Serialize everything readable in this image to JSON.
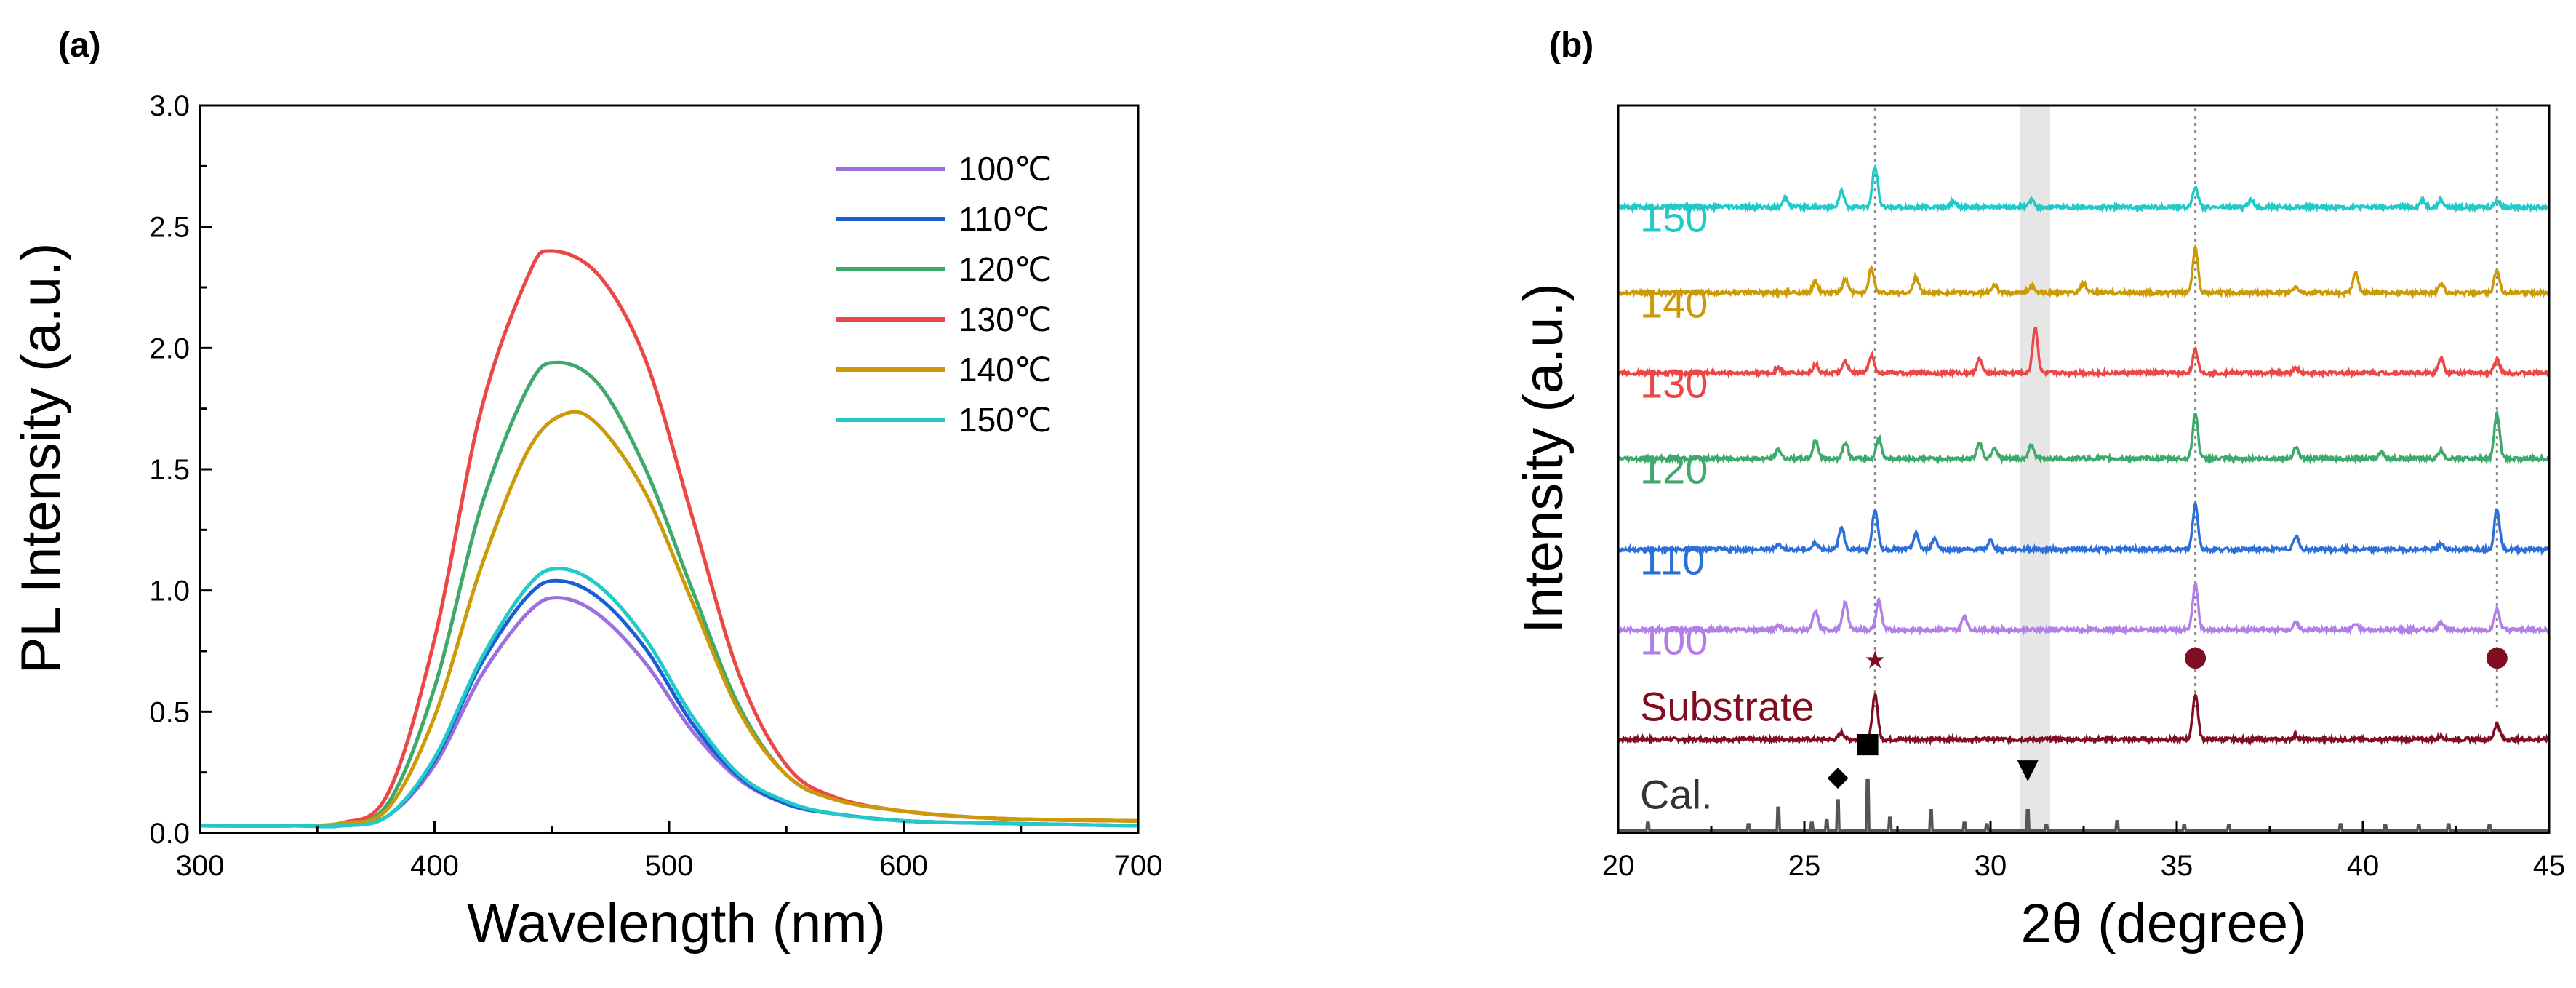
{
  "chart_data": [
    {
      "panel": "(a)",
      "type": "line",
      "xlabel": "Wavelength (nm)",
      "ylabel": "PL Intensity (a.u.)",
      "xlim": [
        300,
        700
      ],
      "ylim": [
        0,
        3.0
      ],
      "xticks": [
        300,
        400,
        500,
        600,
        700
      ],
      "yticks": [
        0.0,
        0.5,
        1.0,
        1.5,
        2.0,
        2.5,
        3.0
      ],
      "ytick_labels": [
        "0.0",
        "0.5",
        "1.0",
        "1.5",
        "2.0",
        "2.5",
        "3.0"
      ],
      "legend_position": "top-right",
      "series": [
        {
          "name": "100℃",
          "color": "#9B6FE0",
          "peak_x": 453,
          "peak_y": 0.97,
          "x": [
            300,
            340,
            360,
            380,
            400,
            420,
            440,
            453,
            470,
            490,
            510,
            530,
            550,
            570,
            600,
            640,
            700
          ],
          "y": [
            0.03,
            0.03,
            0.03,
            0.07,
            0.28,
            0.65,
            0.91,
            0.97,
            0.9,
            0.7,
            0.42,
            0.22,
            0.12,
            0.08,
            0.05,
            0.04,
            0.03
          ]
        },
        {
          "name": "110℃",
          "color": "#1A5FD1",
          "peak_x": 453,
          "peak_y": 1.04,
          "x": [
            300,
            340,
            360,
            380,
            400,
            420,
            440,
            453,
            470,
            490,
            510,
            530,
            550,
            570,
            600,
            640,
            700
          ],
          "y": [
            0.03,
            0.03,
            0.03,
            0.07,
            0.3,
            0.7,
            0.98,
            1.04,
            0.97,
            0.76,
            0.45,
            0.23,
            0.12,
            0.08,
            0.05,
            0.04,
            0.03
          ]
        },
        {
          "name": "120℃",
          "color": "#3DA96B",
          "peak_x": 452,
          "peak_y": 1.94,
          "x": [
            300,
            340,
            360,
            380,
            400,
            420,
            440,
            452,
            470,
            490,
            510,
            530,
            550,
            570,
            600,
            640,
            700
          ],
          "y": [
            0.03,
            0.03,
            0.04,
            0.12,
            0.6,
            1.35,
            1.84,
            1.94,
            1.85,
            1.5,
            1.0,
            0.52,
            0.24,
            0.14,
            0.09,
            0.06,
            0.05
          ]
        },
        {
          "name": "130℃",
          "color": "#EC4747",
          "peak_x": 450,
          "peak_y": 2.4,
          "x": [
            300,
            340,
            360,
            380,
            400,
            420,
            440,
            450,
            470,
            490,
            510,
            530,
            550,
            570,
            600,
            640,
            700
          ],
          "y": [
            0.03,
            0.03,
            0.04,
            0.16,
            0.8,
            1.75,
            2.3,
            2.4,
            2.3,
            1.95,
            1.3,
            0.65,
            0.28,
            0.15,
            0.09,
            0.06,
            0.05
          ]
        },
        {
          "name": "140℃",
          "color": "#CC9A06",
          "peak_x": 456,
          "peak_y": 1.73,
          "x": [
            300,
            340,
            360,
            380,
            400,
            420,
            440,
            456,
            470,
            490,
            510,
            530,
            550,
            570,
            600,
            640,
            700
          ],
          "y": [
            0.03,
            0.03,
            0.04,
            0.1,
            0.48,
            1.1,
            1.58,
            1.73,
            1.68,
            1.4,
            0.95,
            0.5,
            0.24,
            0.14,
            0.09,
            0.06,
            0.05
          ]
        },
        {
          "name": "150℃",
          "color": "#22C9C9",
          "peak_x": 453,
          "peak_y": 1.09,
          "x": [
            300,
            340,
            360,
            380,
            400,
            420,
            440,
            453,
            470,
            490,
            510,
            530,
            550,
            570,
            600,
            640,
            700
          ],
          "y": [
            0.03,
            0.03,
            0.03,
            0.07,
            0.31,
            0.72,
            1.02,
            1.09,
            1.02,
            0.8,
            0.48,
            0.24,
            0.13,
            0.08,
            0.05,
            0.04,
            0.03
          ]
        }
      ]
    },
    {
      "panel": "(b)",
      "type": "line",
      "xlabel": "2θ (degree)",
      "ylabel": "Intensity (a.u.)",
      "xlim": [
        20,
        45
      ],
      "xticks": [
        20,
        25,
        30,
        35,
        40,
        45
      ],
      "yticks": [],
      "reference_lines_x": [
        26.9,
        35.5,
        43.6
      ],
      "shaded_band_x": [
        30.8,
        31.6
      ],
      "series": [
        {
          "name": "Cal.",
          "color": "#555555",
          "offset": 0.05,
          "peaks": [
            [
              20.8,
              0.15
            ],
            [
              23.5,
              0.12
            ],
            [
              24.3,
              0.45
            ],
            [
              25.2,
              0.15
            ],
            [
              25.6,
              0.2
            ],
            [
              25.9,
              0.6
            ],
            [
              26.7,
              1.0
            ],
            [
              27.3,
              0.25
            ],
            [
              28.4,
              0.4
            ],
            [
              29.3,
              0.15
            ],
            [
              29.9,
              0.12
            ],
            [
              31.0,
              0.4
            ],
            [
              31.5,
              0.1
            ],
            [
              33.4,
              0.18
            ],
            [
              35.2,
              0.1
            ],
            [
              36.4,
              0.1
            ],
            [
              39.4,
              0.12
            ],
            [
              40.6,
              0.1
            ],
            [
              41.5,
              0.1
            ],
            [
              42.3,
              0.12
            ],
            [
              43.4,
              0.1
            ]
          ]
        },
        {
          "name": "Substrate",
          "color": "#7F0E22",
          "offset": 1.75,
          "peaks": [
            [
              26.0,
              0.15
            ],
            [
              26.9,
              1.0
            ],
            [
              35.5,
              1.0
            ],
            [
              38.2,
              0.08
            ],
            [
              42.1,
              0.07
            ],
            [
              43.6,
              0.35
            ]
          ]
        },
        {
          "name": "100",
          "color": "#B27FE8",
          "offset": 3.8,
          "peaks": [
            [
              24.3,
              0.1
            ],
            [
              25.3,
              0.4
            ],
            [
              26.1,
              0.6
            ],
            [
              27.0,
              0.65
            ],
            [
              29.3,
              0.3
            ],
            [
              35.5,
              1.0
            ],
            [
              38.2,
              0.15
            ],
            [
              39.8,
              0.12
            ],
            [
              42.1,
              0.18
            ],
            [
              43.6,
              0.45
            ]
          ]
        },
        {
          "name": "110",
          "color": "#2D6FD9",
          "offset": 5.3,
          "peaks": [
            [
              24.3,
              0.12
            ],
            [
              25.3,
              0.15
            ],
            [
              26.0,
              0.5
            ],
            [
              26.9,
              0.9
            ],
            [
              28.0,
              0.35
            ],
            [
              28.5,
              0.25
            ],
            [
              30.0,
              0.2
            ],
            [
              35.5,
              1.0
            ],
            [
              38.2,
              0.3
            ],
            [
              42.1,
              0.12
            ],
            [
              43.6,
              0.9
            ]
          ]
        },
        {
          "name": "120",
          "color": "#3DA96B",
          "offset": 7.0,
          "peaks": [
            [
              24.3,
              0.2
            ],
            [
              25.3,
              0.4
            ],
            [
              26.1,
              0.35
            ],
            [
              27.0,
              0.45
            ],
            [
              29.7,
              0.35
            ],
            [
              30.1,
              0.25
            ],
            [
              31.1,
              0.3
            ],
            [
              35.5,
              1.0
            ],
            [
              38.2,
              0.25
            ],
            [
              40.5,
              0.15
            ],
            [
              42.1,
              0.18
            ],
            [
              43.6,
              1.0
            ]
          ]
        },
        {
          "name": "130",
          "color": "#EC4747",
          "offset": 8.6,
          "peaks": [
            [
              24.3,
              0.12
            ],
            [
              25.3,
              0.2
            ],
            [
              26.1,
              0.25
            ],
            [
              26.8,
              0.4
            ],
            [
              29.7,
              0.3
            ],
            [
              31.2,
              1.0
            ],
            [
              35.5,
              0.5
            ],
            [
              38.2,
              0.12
            ],
            [
              42.1,
              0.35
            ],
            [
              43.6,
              0.3
            ]
          ]
        },
        {
          "name": "140",
          "color": "#CC9A06",
          "offset": 10.1,
          "peaks": [
            [
              25.3,
              0.25
            ],
            [
              26.1,
              0.3
            ],
            [
              26.8,
              0.55
            ],
            [
              28.0,
              0.35
            ],
            [
              30.1,
              0.18
            ],
            [
              31.1,
              0.15
            ],
            [
              32.5,
              0.2
            ],
            [
              35.5,
              1.0
            ],
            [
              38.2,
              0.12
            ],
            [
              39.8,
              0.45
            ],
            [
              42.1,
              0.2
            ],
            [
              43.6,
              0.5
            ]
          ]
        },
        {
          "name": "150",
          "color": "#22C9C9",
          "offset": 11.7,
          "peaks": [
            [
              24.5,
              0.2
            ],
            [
              26.0,
              0.35
            ],
            [
              26.9,
              0.9
            ],
            [
              29.0,
              0.12
            ],
            [
              31.1,
              0.15
            ],
            [
              35.5,
              0.45
            ],
            [
              37.0,
              0.15
            ],
            [
              41.6,
              0.15
            ],
            [
              42.1,
              0.15
            ],
            [
              43.6,
              0.15
            ]
          ]
        }
      ],
      "markers": [
        {
          "symbol": "★",
          "name": "star-marker",
          "x": 26.9,
          "color": "#7F0E22"
        },
        {
          "symbol": "●",
          "name": "circle-marker",
          "x": 35.5,
          "color": "#7F0E22"
        },
        {
          "symbol": "●",
          "name": "circle-marker",
          "x": 43.6,
          "color": "#7F0E22"
        },
        {
          "symbol": "◆",
          "name": "diamond-marker",
          "x": 25.9,
          "color": "#000000"
        },
        {
          "symbol": "■",
          "name": "square-marker",
          "x": 26.7,
          "color": "#000000"
        },
        {
          "symbol": "▼",
          "name": "triangle-marker",
          "x": 31.0,
          "color": "#000000"
        }
      ]
    }
  ]
}
